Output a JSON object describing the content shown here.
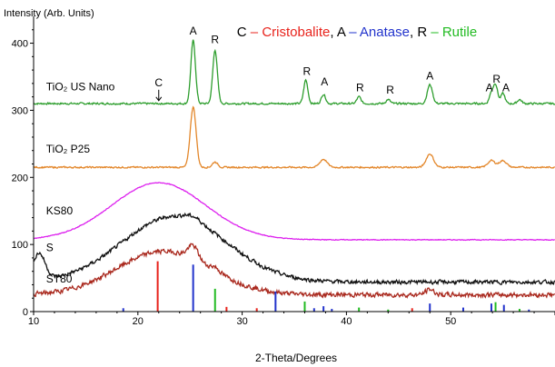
{
  "chart_data": {
    "type": "line",
    "title": "",
    "xlabel": "2-Theta/Degrees",
    "ylabel": "Intensity (Arb. Units)",
    "xlim": [
      10,
      60
    ],
    "ylim": [
      0,
      440
    ],
    "xticks": [
      10,
      20,
      30,
      40,
      50
    ],
    "yticks": [
      0,
      100,
      200,
      300,
      400
    ],
    "legend": {
      "parts": [
        {
          "text": "C",
          "color": "#000000"
        },
        {
          "text": " – Cristobalite",
          "color": "#e8231c"
        },
        {
          "text": ", ",
          "color": "#000000"
        },
        {
          "text": "A",
          "color": "#000000"
        },
        {
          "text": " – Anatase",
          "color": "#2233cc"
        },
        {
          "text": ", ",
          "color": "#000000"
        },
        {
          "text": "R",
          "color": "#000000"
        },
        {
          "text": " – Rutile",
          "color": "#22bb22"
        }
      ]
    },
    "series": [
      {
        "name": "TiO₂ US Nano",
        "color": "#2e9e2e",
        "baseline": 310,
        "noise": 1.2,
        "hump": null,
        "peaks": [
          [
            25.3,
            94,
            0.22
          ],
          [
            27.4,
            80,
            0.22
          ],
          [
            36.1,
            35,
            0.2
          ],
          [
            37.8,
            14,
            0.2
          ],
          [
            41.2,
            10,
            0.2
          ],
          [
            44.0,
            6,
            0.2
          ],
          [
            48.0,
            28,
            0.25
          ],
          [
            53.9,
            15,
            0.2
          ],
          [
            54.3,
            28,
            0.2
          ],
          [
            55.0,
            15,
            0.2
          ],
          [
            56.6,
            6,
            0.2
          ]
        ],
        "end_slope": 0
      },
      {
        "name": "TiO₂ P25",
        "color": "#e3872b",
        "baseline": 215,
        "noise": 1.0,
        "hump": null,
        "peaks": [
          [
            25.3,
            90,
            0.28
          ],
          [
            27.4,
            8,
            0.25
          ],
          [
            37.8,
            12,
            0.35
          ],
          [
            48.0,
            20,
            0.35
          ],
          [
            53.9,
            10,
            0.35
          ],
          [
            55.0,
            10,
            0.35
          ]
        ],
        "end_slope": 0
      },
      {
        "name": "KS80",
        "color": "#dd22ee",
        "baseline": 107,
        "noise": 0.5,
        "hump": [
          22,
          85,
          4.5
        ],
        "peaks": [],
        "end_slope": 0
      },
      {
        "name": "S",
        "color": "#111111",
        "baseline": 44,
        "noise": 2.5,
        "hump": [
          23.5,
          98,
          5
        ],
        "peaks": [
          [
            25.3,
            6,
            0.8
          ]
        ],
        "end_slope": 0,
        "start_bump": [
          10.5,
          40,
          0.6
        ]
      },
      {
        "name": "ST80",
        "color": "#aa2a1f",
        "baseline": 25,
        "noise": 3.0,
        "hump": [
          22.5,
          65,
          4.5
        ],
        "peaks": [
          [
            25.3,
            20,
            0.5
          ],
          [
            27.4,
            6,
            0.4
          ],
          [
            48.0,
            8,
            0.4
          ]
        ],
        "end_slope": 0
      }
    ],
    "sticks": [
      {
        "x": 18.6,
        "h": 5,
        "color": "#2233cc"
      },
      {
        "x": 21.9,
        "h": 75,
        "color": "#e8231c"
      },
      {
        "x": 25.3,
        "h": 70,
        "color": "#2233cc"
      },
      {
        "x": 27.4,
        "h": 34,
        "color": "#22bb22"
      },
      {
        "x": 28.5,
        "h": 7,
        "color": "#e8231c"
      },
      {
        "x": 31.4,
        "h": 5,
        "color": "#e8231c"
      },
      {
        "x": 33.2,
        "h": 30,
        "color": "#2233cc"
      },
      {
        "x": 36.0,
        "h": 15,
        "color": "#22bb22"
      },
      {
        "x": 36.9,
        "h": 5,
        "color": "#2233cc"
      },
      {
        "x": 37.8,
        "h": 8,
        "color": "#2233cc"
      },
      {
        "x": 38.6,
        "h": 4,
        "color": "#2233cc"
      },
      {
        "x": 41.2,
        "h": 6,
        "color": "#22bb22"
      },
      {
        "x": 44.0,
        "h": 3,
        "color": "#22bb22"
      },
      {
        "x": 46.3,
        "h": 5,
        "color": "#e8231c"
      },
      {
        "x": 48.0,
        "h": 12,
        "color": "#2233cc"
      },
      {
        "x": 51.2,
        "h": 6,
        "color": "#2233cc"
      },
      {
        "x": 53.9,
        "h": 12,
        "color": "#2233cc"
      },
      {
        "x": 54.3,
        "h": 14,
        "color": "#22bb22"
      },
      {
        "x": 55.1,
        "h": 10,
        "color": "#2233cc"
      },
      {
        "x": 56.6,
        "h": 4,
        "color": "#22bb22"
      },
      {
        "x": 57.5,
        "h": 3,
        "color": "#2233cc"
      }
    ],
    "annotations": [
      {
        "text": "C",
        "x": 22.0,
        "y": 336,
        "arrow": true
      },
      {
        "text": "A",
        "x": 25.3,
        "y": 413
      },
      {
        "text": "R",
        "x": 27.4,
        "y": 400
      },
      {
        "text": "R",
        "x": 36.2,
        "y": 353
      },
      {
        "text": "A",
        "x": 37.9,
        "y": 337
      },
      {
        "text": "R",
        "x": 41.3,
        "y": 328
      },
      {
        "text": "R",
        "x": 44.2,
        "y": 325
      },
      {
        "text": "A",
        "x": 48.0,
        "y": 346
      },
      {
        "text": "A",
        "x": 53.7,
        "y": 328
      },
      {
        "text": "R",
        "x": 54.4,
        "y": 341
      },
      {
        "text": "A",
        "x": 55.3,
        "y": 328
      }
    ],
    "labels": [
      {
        "text": "TiO₂ US Nano",
        "x": 11.2,
        "y": 330
      },
      {
        "text": "TiO₂ P25",
        "x": 11.2,
        "y": 237
      },
      {
        "text": "KS80",
        "x": 11.2,
        "y": 145
      },
      {
        "text": "S",
        "x": 11.2,
        "y": 90
      },
      {
        "text": "ST80",
        "x": 11.2,
        "y": 43
      }
    ]
  }
}
